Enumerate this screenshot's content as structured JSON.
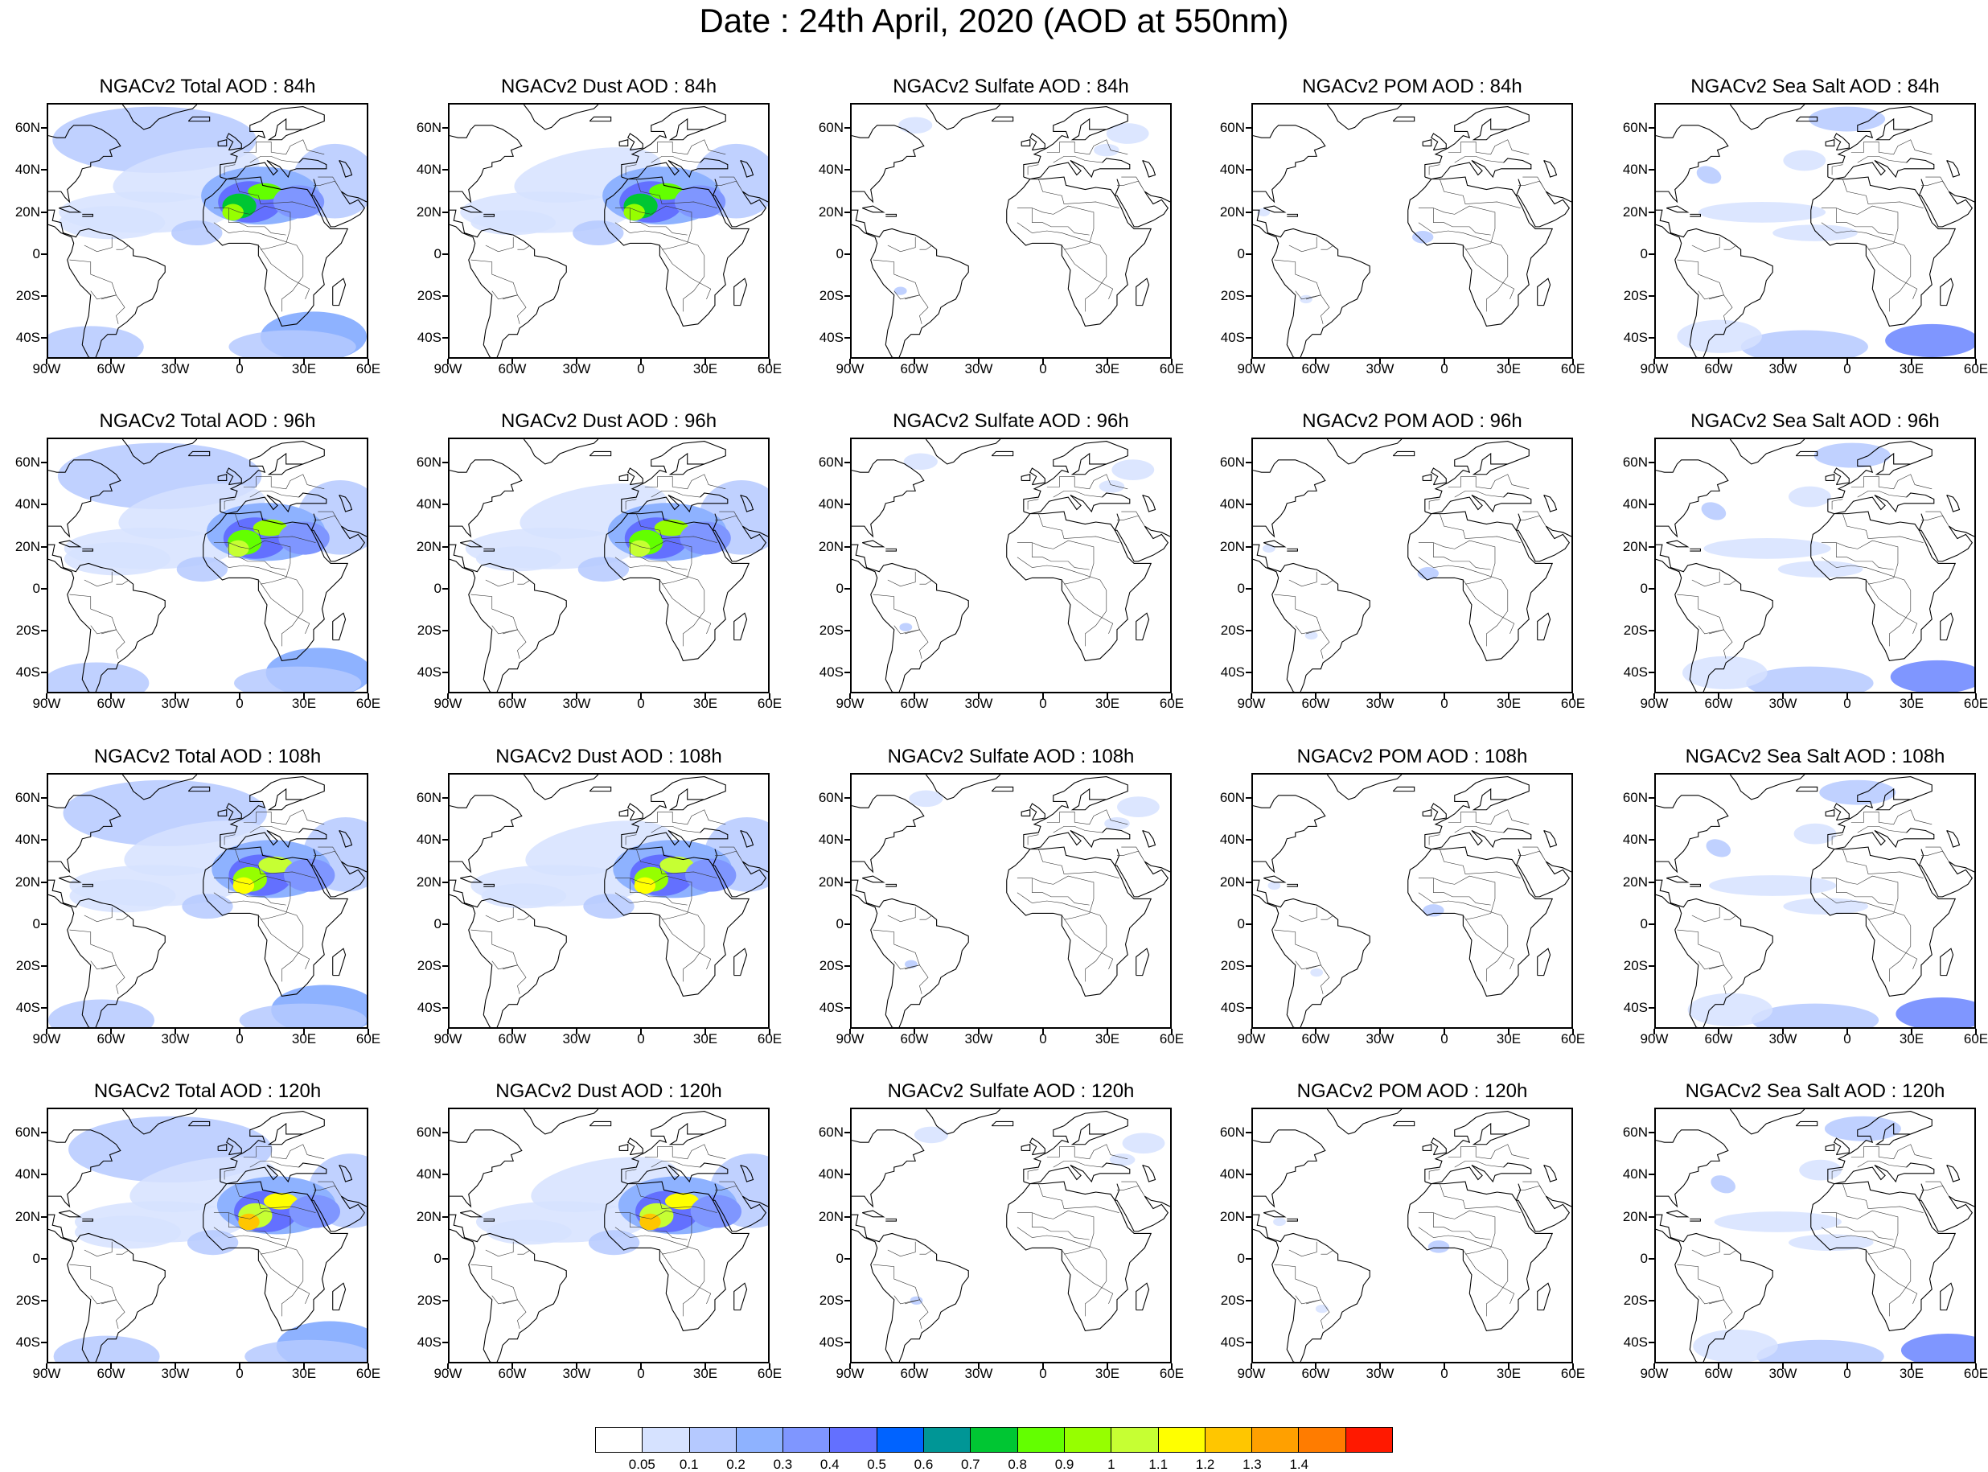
{
  "title": "Date : 24th April, 2020 (AOD at 550nm)",
  "columns": [
    "Total",
    "Dust",
    "Sulfate",
    "POM",
    "Sea Salt"
  ],
  "panels": [
    {
      "title": "NGACv2 Total AOD : 84h",
      "species": "total",
      "hour": 84
    },
    {
      "title": "NGACv2 Dust AOD : 84h",
      "species": "dust",
      "hour": 84
    },
    {
      "title": "NGACv2 Sulfate AOD : 84h",
      "species": "sulfate",
      "hour": 84
    },
    {
      "title": "NGACv2 POM AOD : 84h",
      "species": "pom",
      "hour": 84
    },
    {
      "title": "NGACv2 Sea Salt AOD : 84h",
      "species": "seasalt",
      "hour": 84
    },
    {
      "title": "NGACv2 Total AOD : 96h",
      "species": "total",
      "hour": 96
    },
    {
      "title": "NGACv2 Dust AOD : 96h",
      "species": "dust",
      "hour": 96
    },
    {
      "title": "NGACv2 Sulfate AOD : 96h",
      "species": "sulfate",
      "hour": 96
    },
    {
      "title": "NGACv2 POM AOD : 96h",
      "species": "pom",
      "hour": 96
    },
    {
      "title": "NGACv2 Sea Salt AOD : 96h",
      "species": "seasalt",
      "hour": 96
    },
    {
      "title": "NGACv2 Total AOD : 108h",
      "species": "total",
      "hour": 108
    },
    {
      "title": "NGACv2 Dust AOD : 108h",
      "species": "dust",
      "hour": 108
    },
    {
      "title": "NGACv2 Sulfate AOD : 108h",
      "species": "sulfate",
      "hour": 108
    },
    {
      "title": "NGACv2 POM AOD : 108h",
      "species": "pom",
      "hour": 108
    },
    {
      "title": "NGACv2 Sea Salt AOD : 108h",
      "species": "seasalt",
      "hour": 108
    },
    {
      "title": "NGACv2 Total AOD : 120h",
      "species": "total",
      "hour": 120
    },
    {
      "title": "NGACv2 Dust AOD : 120h",
      "species": "dust",
      "hour": 120
    },
    {
      "title": "NGACv2 Sulfate AOD : 120h",
      "species": "sulfate",
      "hour": 120
    },
    {
      "title": "NGACv2 POM AOD : 120h",
      "species": "pom",
      "hour": 120
    },
    {
      "title": "NGACv2 Sea Salt  AOD : 120h",
      "species": "seasalt",
      "hour": 120
    }
  ],
  "axes": {
    "lon_range": [
      -90,
      60
    ],
    "lat_range": [
      -50,
      72
    ],
    "x_ticks": [
      {
        "value": -90,
        "label": "90W"
      },
      {
        "value": -60,
        "label": "60W"
      },
      {
        "value": -30,
        "label": "30W"
      },
      {
        "value": 0,
        "label": "0"
      },
      {
        "value": 30,
        "label": "30E"
      },
      {
        "value": 60,
        "label": "60E"
      }
    ],
    "y_ticks": [
      {
        "value": 60,
        "label": "60N"
      },
      {
        "value": 40,
        "label": "40N"
      },
      {
        "value": 20,
        "label": "20N"
      },
      {
        "value": 0,
        "label": "0"
      },
      {
        "value": -20,
        "label": "20S"
      },
      {
        "value": -40,
        "label": "40S"
      }
    ]
  },
  "colorbar": {
    "labels": [
      "0.05",
      "0.1",
      "0.2",
      "0.3",
      "0.4",
      "0.5",
      "0.6",
      "0.7",
      "0.8",
      "0.9",
      "1",
      "1.1",
      "1.2",
      "1.3",
      "1.4"
    ],
    "colors": [
      "#ffffff",
      "#d6e2ff",
      "#b5c9ff",
      "#8eb2ff",
      "#7f96ff",
      "#6370ff",
      "#0063ff",
      "#009696",
      "#00c633",
      "#63ff00",
      "#96ff00",
      "#c6ff33",
      "#ffff00",
      "#ffc600",
      "#ffa000",
      "#ff7c00",
      "#ff1900"
    ]
  }
}
